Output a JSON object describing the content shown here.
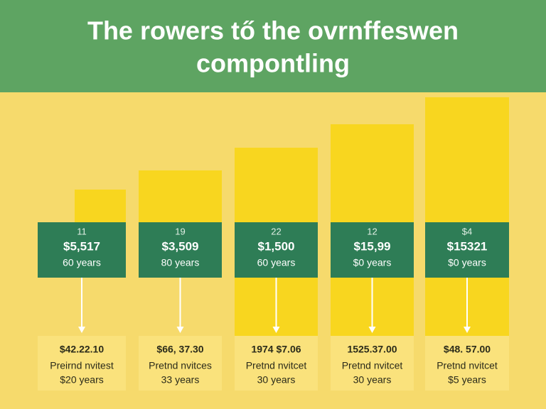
{
  "header": {
    "title_lines": [
      "The rowers tő the ovrnffeswen",
      "compontling"
    ]
  },
  "columns": [
    {
      "top": {
        "label": "11",
        "amount": "$5,517",
        "years": "60 years"
      },
      "bottom": {
        "amount": "$42.22.10",
        "text": "Preirnd nvitest",
        "years": "$20 years"
      }
    },
    {
      "top": {
        "label": "19",
        "amount": "$3,509",
        "years": "80 years"
      },
      "bottom": {
        "amount": "$66, 37.30",
        "text": "Pretnd nvitces",
        "years": "33 years"
      }
    },
    {
      "top": {
        "label": "22",
        "amount": "$1,500",
        "years": "60 years"
      },
      "bottom": {
        "amount": "1974 $7.06",
        "text": "Pretnd nvitcet",
        "years": "30 years"
      }
    },
    {
      "top": {
        "label": "12",
        "amount": "$15,99",
        "years": "$0 years"
      },
      "bottom": {
        "amount": "1525.37.00",
        "text": "Pretnd nvitcet",
        "years": "30 years"
      }
    },
    {
      "top": {
        "label": "$4",
        "amount": "$15321",
        "years": "$0 years"
      },
      "bottom": {
        "amount": "$48. 57.00",
        "text": "Pretnd nvitcet",
        "years": "$5 years"
      }
    }
  ]
}
